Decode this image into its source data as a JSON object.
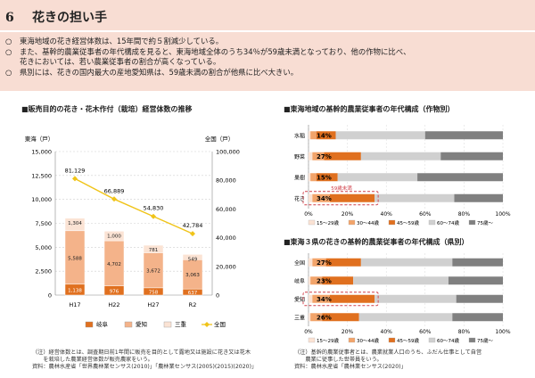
{
  "title": {
    "number": "6",
    "text": "花きの担い手"
  },
  "summary": {
    "bullet": "○",
    "lines": [
      "東海地域の花き経営体数は、15年間で約５割減少している。",
      "また、基幹的農業従事者の年代構成を見ると、東海地域全体のうち34％が59歳未満となっており、他の作物に比べ、",
      "花きにおいては、若い農業従事者の割合が高くなっている。",
      "県別には、花きの国内最大の産地愛知県は、59歳未満の割合が他県に比べ大きい。"
    ]
  },
  "chart1": {
    "heading": "■販売目的の花き・花木作付（栽培）経営体数の推移",
    "left_axis_title": "東海（戸）",
    "right_axis_title": "全国（戸）",
    "note_lines": [
      "（注）経営体数とは、調査期日前1年間に販売を目的として露地又は施設に花き又は花木",
      "　　を栽培した農業経営体数が販売農家をいう。",
      "資料：農林水産省「世界農林業センサス(2010)」「農林業センサス(2005)(2015)(2020)」"
    ]
  },
  "chart2": {
    "heading": "■東海地域の基幹的農業従事者の年代構成（作物別）",
    "callout": "59歳未満"
  },
  "chart3": {
    "heading": "■東海３県の花きの基幹的農業従事者の年代構成（県別）",
    "note_lines": [
      "（注）基幹的農業従事者とは、農業就業人口のうち、ふだん仕事として自営",
      "　　農業に従事した世帯員をいう。",
      "資料：農林水産省「農林業センサス(2020)」"
    ]
  },
  "chart_data": [
    {
      "type": "bar",
      "stacked": true,
      "categories": [
        "H17",
        "H22",
        "H27",
        "R2"
      ],
      "series": [
        {
          "name": "岐阜",
          "values": [
            1138,
            976,
            758,
            637
          ],
          "color": "#e0701f"
        },
        {
          "name": "愛知",
          "values": [
            5588,
            4702,
            3672,
            3063
          ],
          "color": "#f4b38a"
        },
        {
          "name": "三重",
          "values": [
            1304,
            1000,
            781,
            549
          ],
          "color": "#fbe3d4"
        }
      ],
      "line_series": {
        "name": "全国",
        "values": [
          81129,
          66889,
          54830,
          42784
        ],
        "color": "#f0c419",
        "axis": "right"
      },
      "ylim_left": [
        0,
        15000
      ],
      "yticks_left": [
        "0",
        "2,500",
        "5,000",
        "7,500",
        "10,000",
        "12,500",
        "15,000"
      ],
      "ylim_right": [
        0,
        100000
      ],
      "yticks_right": [
        "0",
        "20,000",
        "40,000",
        "60,000",
        "80,000",
        "100,000"
      ],
      "bar_labels": [
        [
          "1,138",
          "976",
          "758",
          "637"
        ],
        [
          "5,588",
          "4,702",
          "3,672",
          "3,063"
        ],
        [
          "1,304",
          "1,000",
          "781",
          "549"
        ]
      ],
      "line_labels": [
        "81,129",
        "66,889",
        "54,830",
        "42,784"
      ],
      "legend": [
        "岐阜",
        "愛知",
        "三重",
        "全国"
      ]
    },
    {
      "type": "bar",
      "orientation": "horizontal",
      "stacked": "percent",
      "categories": [
        "水稲",
        "野菜",
        "果樹",
        "花き"
      ],
      "series": [
        {
          "name": "15〜29歳",
          "values": [
            1,
            2,
            1,
            2
          ],
          "color": "#fbe3d4"
        },
        {
          "name": "30〜44歳",
          "values": [
            3,
            6,
            3,
            9
          ],
          "color": "#f2a46a"
        },
        {
          "name": "45〜59歳",
          "values": [
            10,
            19,
            11,
            23
          ],
          "color": "#e0701f"
        },
        {
          "name": "60〜74歳",
          "values": [
            46,
            41,
            41,
            41
          ],
          "color": "#d0d0d0"
        },
        {
          "name": "75歳〜",
          "values": [
            40,
            32,
            44,
            25
          ],
          "color": "#808080"
        }
      ],
      "under59_labels": [
        "14%",
        "27%",
        "15%",
        "34%"
      ],
      "xticks": [
        "0%",
        "20%",
        "40%",
        "60%",
        "80%",
        "100%"
      ],
      "xlim": [
        0,
        100
      ],
      "highlight": "花き"
    },
    {
      "type": "bar",
      "orientation": "horizontal",
      "stacked": "percent",
      "categories": [
        "全国",
        "岐阜",
        "愛知",
        "三重"
      ],
      "series": [
        {
          "name": "15〜29歳",
          "values": [
            2,
            1,
            2,
            1
          ],
          "color": "#fbe3d4"
        },
        {
          "name": "30〜44歳",
          "values": [
            7,
            6,
            9,
            6
          ],
          "color": "#f2a46a"
        },
        {
          "name": "45〜59歳",
          "values": [
            18,
            16,
            23,
            19
          ],
          "color": "#e0701f"
        },
        {
          "name": "60〜74歳",
          "values": [
            47,
            49,
            42,
            48
          ],
          "color": "#d0d0d0"
        },
        {
          "name": "75歳〜",
          "values": [
            26,
            28,
            24,
            26
          ],
          "color": "#808080"
        }
      ],
      "under59_labels": [
        "27%",
        "23%",
        "34%",
        "26%"
      ],
      "xticks": [
        "0%",
        "20%",
        "40%",
        "60%",
        "80%",
        "100%"
      ],
      "xlim": [
        0,
        100
      ],
      "highlight": "愛知"
    }
  ]
}
